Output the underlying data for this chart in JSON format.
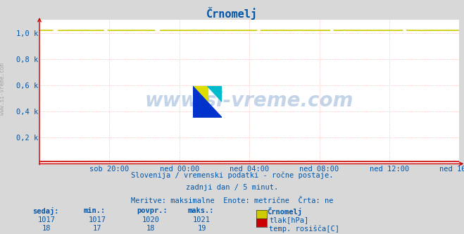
{
  "title": "Črnomelj",
  "title_color": "#0055aa",
  "bg_color": "#d8d8d8",
  "plot_bg_color": "#ffffff",
  "grid_h_color": "#ffaaaa",
  "grid_v_color": "#ffaaaa",
  "x_labels": [
    "sob 20:00",
    "ned 00:00",
    "ned 04:00",
    "ned 08:00",
    "ned 12:00",
    "ned 16:00"
  ],
  "ylim": [
    0,
    1100
  ],
  "ytick_vals": [
    200,
    400,
    600,
    800,
    1000
  ],
  "ytick_labels": [
    "0,2 k",
    "0,4 k",
    "0,6 k",
    "0,8 k",
    "1,0 k"
  ],
  "tlak_color": "#cccc00",
  "rosisca_color": "#cc0000",
  "tlak_base": 1020,
  "rosisca_base": 18,
  "n_points": 289,
  "watermark": "www.si-vreme.com",
  "watermark_color": "#1155aa",
  "watermark_alpha": 0.25,
  "subtitle1": "Slovenija / vremenski podatki - ročne postaje.",
  "subtitle2": "zadnji dan / 5 minut.",
  "subtitle3": "Meritve: maksimalne  Enote: metrične  Črta: ne",
  "text_color": "#0055aa",
  "table_headers": [
    "sedaj:",
    "min.:",
    "povpr.:",
    "maks.:",
    "Črnomelj"
  ],
  "table_row1": [
    1017,
    1017,
    1020,
    1021
  ],
  "table_row2": [
    18,
    17,
    18,
    19
  ],
  "legend_colors": [
    "#cccc00",
    "#cc0000"
  ],
  "legend_labels": [
    "tlak[hPa]",
    "temp. rosišča[C]"
  ],
  "arrow_color": "#cc0000",
  "side_text": "www.si-vreme.com",
  "side_text_color": "#888888"
}
